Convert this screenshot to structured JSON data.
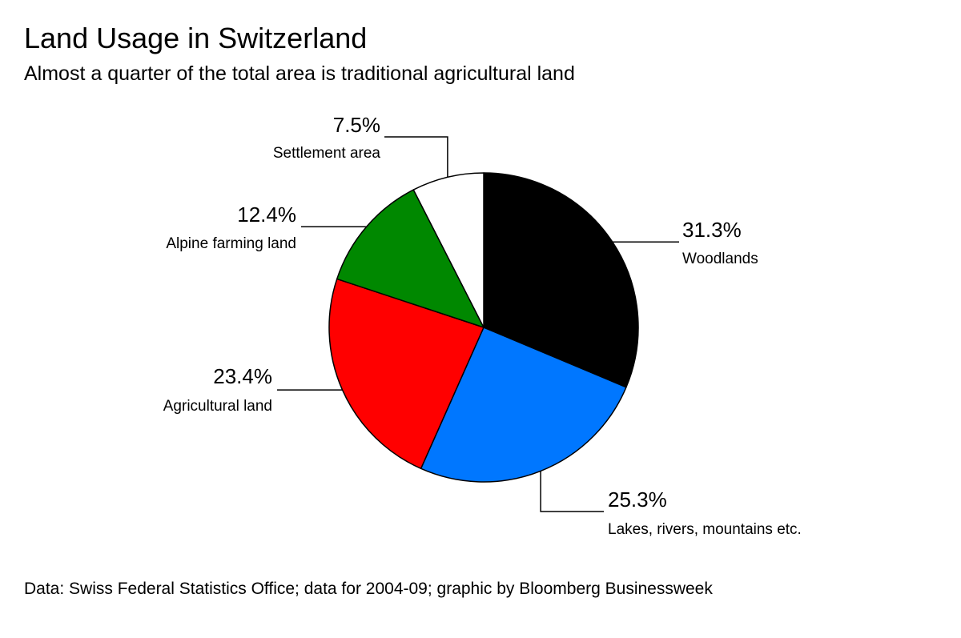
{
  "chart_data": {
    "type": "pie",
    "title": "Land Usage in Switzerland",
    "subtitle": "Almost a quarter of the total area is traditional agricultural land",
    "source": "Data: Swiss Federal Statistics Office; data for 2004-09; graphic by Bloomberg Businessweek",
    "slices": [
      {
        "label": "Woodlands",
        "value": 31.3,
        "value_label": "31.3%",
        "color": "#000000"
      },
      {
        "label": "Lakes, rivers, mountains etc.",
        "value": 25.3,
        "value_label": "25.3%",
        "color": "#0077ff"
      },
      {
        "label": "Agricultural land",
        "value": 23.4,
        "value_label": "23.4%",
        "color": "#ff0000"
      },
      {
        "label": "Alpine farming land",
        "value": 12.4,
        "value_label": "12.4%",
        "color": "#008800"
      },
      {
        "label": "Settlement area",
        "value": 7.5,
        "value_label": "7.5%",
        "color": "#ffffff"
      }
    ],
    "legend": "none"
  }
}
